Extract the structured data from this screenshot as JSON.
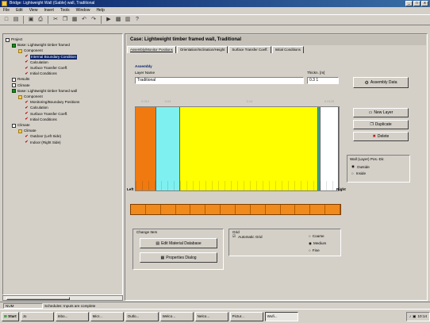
{
  "window": {
    "title": "Bridge: Lightweight Wall (Gable) wall, Traditional",
    "controls": [
      "_",
      "□",
      "x"
    ]
  },
  "menu": [
    "File",
    "Edit",
    "View",
    "Insert",
    "Tools",
    "Window",
    "Help"
  ],
  "toolbar": {
    "icons": [
      "new-icon",
      "open-icon",
      "save-icon",
      "print-icon",
      "cut-icon",
      "copy-icon",
      "paste-icon",
      "undo-icon",
      "redo-icon",
      "calc-icon",
      "grid-icon",
      "chart-icon",
      "help-icon"
    ]
  },
  "tree": {
    "nodes": [
      {
        "label": "Project",
        "icon": "box",
        "depth": 0
      },
      {
        "label": "Base: Lightweight timber framed",
        "icon": "green",
        "depth": 1
      },
      {
        "label": "Component",
        "icon": "folder",
        "depth": 2
      },
      {
        "label": "Internal Boundary Condition",
        "icon": "check",
        "depth": 3,
        "selected": true
      },
      {
        "label": "Calculation",
        "icon": "check",
        "depth": 3
      },
      {
        "label": "Surface Transfer Coeff.",
        "icon": "check",
        "depth": 3
      },
      {
        "label": "Initial Conditions",
        "icon": "check",
        "depth": 3
      },
      {
        "label": "Results",
        "icon": "box",
        "depth": 1
      },
      {
        "label": "Climate",
        "icon": "box",
        "depth": 1
      },
      {
        "label": "Base: Lightweight timber framed wall",
        "icon": "green",
        "depth": 1
      },
      {
        "label": "Component",
        "icon": "folder",
        "depth": 2
      },
      {
        "label": "Monitoring/Boundary Positions",
        "icon": "check",
        "depth": 3
      },
      {
        "label": "Calculation",
        "icon": "check",
        "depth": 3
      },
      {
        "label": "Surface Transfer Coeff.",
        "icon": "check",
        "depth": 3
      },
      {
        "label": "Initial Conditions",
        "icon": "check",
        "depth": 3
      },
      {
        "label": "Climate",
        "icon": "box",
        "depth": 1
      },
      {
        "label": "Climate",
        "icon": "folder",
        "depth": 2
      },
      {
        "label": "Outdoor (Left Side)",
        "icon": "check",
        "depth": 3
      },
      {
        "label": "Indoor (Right Side)",
        "icon": "check",
        "depth": 3
      }
    ]
  },
  "sheet": {
    "title": "Case: Lightweight timber framed wall, Traditional"
  },
  "tabs": [
    "Assembly/Monitor Positions",
    "Orientation/Inclination/Height",
    "Surface Transfer Coeff.",
    "Initial Conditions"
  ],
  "assembly": {
    "section_label": "Assembly",
    "name_label": "Layer Name",
    "name_value": "Traditional",
    "thickness_label": "Thickn. [m]",
    "thickness_value": "0.3 1",
    "col_labels": [
      "0.012",
      "0.03",
      "0.14",
      "0.0125"
    ],
    "layers": [
      {
        "name": "layer-1",
        "color": "#f07a10",
        "width_frac": 0.1
      },
      {
        "name": "layer-2",
        "color": "#7ff0f0",
        "width_frac": 0.12
      },
      {
        "name": "layer-3",
        "color": "#ffff00",
        "width_frac": 0.68
      },
      {
        "name": "layer-4",
        "color": "#33aa88",
        "width_frac": 0.01
      },
      {
        "name": "layer-5",
        "color": "#ffffff",
        "width_frac": 0.09
      }
    ],
    "left_marker": "Left",
    "right_marker": "Right",
    "strip_cells": 14
  },
  "buttons": {
    "assembly_data": "Assembly Data",
    "new_layer": "New Layer",
    "duplicate": "Duplicate",
    "delete": "Delete"
  },
  "layer_direction": {
    "title": "Wall (Layer) Pos.-Dir.",
    "options": [
      "Outside",
      "Inside"
    ],
    "selected": 0
  },
  "change_item": {
    "title": "Change Item",
    "buttons": [
      "Edit Material Database",
      "Properties Dialog"
    ]
  },
  "grid": {
    "title": "Grid",
    "checkbox_label": "Automatic Grid",
    "checked": true,
    "options": [
      "Coarse",
      "Medium",
      "Fine"
    ],
    "selected": 1
  },
  "status": {
    "left": "NUM",
    "text": "Schedules: Inputs are complete"
  },
  "taskbar": {
    "start_label": "Start",
    "items": [
      "Jo",
      "Inbo...",
      "Micr...",
      "Outlo...",
      "Welco...",
      "Nelco...",
      "Pictur...",
      "Wufi..."
    ],
    "active_index": 7,
    "tray_time": "10:14"
  }
}
